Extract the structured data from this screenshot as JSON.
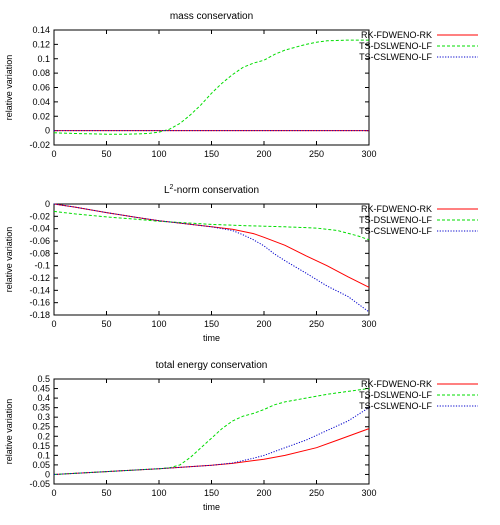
{
  "chart_data": [
    {
      "type": "line",
      "title": "mass conservation",
      "xlabel": "",
      "ylabel": "relative variation",
      "xlim": [
        0,
        300
      ],
      "ylim": [
        -0.02,
        0.14
      ],
      "xticks": [
        0,
        50,
        100,
        150,
        200,
        250,
        300
      ],
      "yticks": [
        -0.02,
        0,
        0.02,
        0.04,
        0.06,
        0.08,
        0.1,
        0.12,
        0.14
      ],
      "xtick_labels": [
        "0",
        "50",
        "100",
        "150",
        "200",
        "250",
        "300"
      ],
      "ytick_labels": [
        "-0.02",
        "0",
        "0.02",
        "0.04",
        "0.06",
        "0.08",
        "0.1",
        "0.12",
        "0.14"
      ],
      "legend_position": "outside-right",
      "grid": false,
      "series": [
        {
          "name": "RK-FDWENO-RK",
          "color": "#ff0000",
          "dash": "solid",
          "x": [
            0,
            300
          ],
          "y": [
            0,
            0
          ]
        },
        {
          "name": "TS-DSLWENO-LF",
          "color": "#00dd00",
          "dash": "dashed",
          "x": [
            0,
            20,
            50,
            70,
            90,
            100,
            110,
            120,
            130,
            140,
            150,
            160,
            170,
            180,
            190,
            200,
            210,
            220,
            230,
            240,
            250,
            260,
            280,
            300
          ],
          "y": [
            -0.003,
            -0.004,
            -0.005,
            -0.005,
            -0.004,
            -0.002,
            0.002,
            0.01,
            0.022,
            0.036,
            0.052,
            0.066,
            0.078,
            0.088,
            0.094,
            0.098,
            0.106,
            0.112,
            0.116,
            0.12,
            0.123,
            0.125,
            0.126,
            0.126
          ]
        },
        {
          "name": "TS-CSLWENO-LF",
          "color": "#0000cc",
          "dash": "dotted",
          "x": [
            0,
            300
          ],
          "y": [
            0,
            0
          ]
        }
      ]
    },
    {
      "type": "line",
      "title": "L2-norm conservation",
      "title_main": "L",
      "title_sup": "2",
      "title_rest": "-norm conservation",
      "xlabel": "time",
      "ylabel": "relative variation",
      "xlim": [
        0,
        300
      ],
      "ylim": [
        -0.18,
        0
      ],
      "xticks": [
        0,
        50,
        100,
        150,
        200,
        250,
        300
      ],
      "yticks": [
        -0.18,
        -0.16,
        -0.14,
        -0.12,
        -0.1,
        -0.08,
        -0.06,
        -0.04,
        -0.02,
        0
      ],
      "xtick_labels": [
        "0",
        "50",
        "100",
        "150",
        "200",
        "250",
        "300"
      ],
      "ytick_labels": [
        "-0.18",
        "-0.16",
        "-0.14",
        "-0.12",
        "-0.1",
        "-0.08",
        "-0.06",
        "-0.04",
        "-0.02",
        "0"
      ],
      "legend_position": "outside-right",
      "grid": false,
      "series": [
        {
          "name": "RK-FDWENO-RK",
          "color": "#ff0000",
          "dash": "solid",
          "x": [
            0,
            20,
            50,
            80,
            100,
            120,
            150,
            170,
            190,
            200,
            220,
            240,
            260,
            280,
            300
          ],
          "y": [
            0,
            -0.005,
            -0.014,
            -0.022,
            -0.027,
            -0.031,
            -0.037,
            -0.041,
            -0.048,
            -0.054,
            -0.067,
            -0.084,
            -0.1,
            -0.118,
            -0.135
          ]
        },
        {
          "name": "TS-DSLWENO-LF",
          "color": "#00dd00",
          "dash": "dashed",
          "x": [
            0,
            20,
            50,
            80,
            100,
            130,
            150,
            180,
            200,
            220,
            250,
            270,
            290,
            300
          ],
          "y": [
            -0.012,
            -0.016,
            -0.021,
            -0.025,
            -0.028,
            -0.031,
            -0.033,
            -0.035,
            -0.036,
            -0.037,
            -0.039,
            -0.043,
            -0.052,
            -0.058
          ]
        },
        {
          "name": "TS-CSLWENO-LF",
          "color": "#0000cc",
          "dash": "dotted",
          "x": [
            0,
            20,
            50,
            80,
            100,
            120,
            150,
            170,
            180,
            190,
            200,
            210,
            220,
            240,
            260,
            280,
            300
          ],
          "y": [
            0,
            -0.005,
            -0.014,
            -0.022,
            -0.027,
            -0.031,
            -0.037,
            -0.043,
            -0.05,
            -0.058,
            -0.068,
            -0.081,
            -0.092,
            -0.112,
            -0.133,
            -0.15,
            -0.175
          ]
        }
      ]
    },
    {
      "type": "line",
      "title": "total energy conservation",
      "xlabel": "time",
      "ylabel": "relative variation",
      "xlim": [
        0,
        300
      ],
      "ylim": [
        -0.05,
        0.5
      ],
      "xticks": [
        0,
        50,
        100,
        150,
        200,
        250,
        300
      ],
      "yticks": [
        -0.05,
        0,
        0.05,
        0.1,
        0.15,
        0.2,
        0.25,
        0.3,
        0.35,
        0.4,
        0.45,
        0.5
      ],
      "xtick_labels": [
        "0",
        "50",
        "100",
        "150",
        "200",
        "250",
        "300"
      ],
      "ytick_labels": [
        "-0.05",
        "0",
        "0.05",
        "0.1",
        "0.15",
        "0.2",
        "0.25",
        "0.3",
        "0.35",
        "0.4",
        "0.45",
        "0.5"
      ],
      "legend_position": "outside-right",
      "grid": false,
      "series": [
        {
          "name": "RK-FDWENO-RK",
          "color": "#ff0000",
          "dash": "solid",
          "x": [
            0,
            50,
            100,
            150,
            170,
            200,
            220,
            250,
            270,
            300
          ],
          "y": [
            0,
            0.015,
            0.03,
            0.048,
            0.058,
            0.08,
            0.1,
            0.14,
            0.18,
            0.24
          ]
        },
        {
          "name": "TS-DSLWENO-LF",
          "color": "#00dd00",
          "dash": "dashed",
          "x": [
            0,
            50,
            100,
            110,
            120,
            130,
            140,
            150,
            160,
            170,
            180,
            190,
            200,
            210,
            220,
            240,
            260,
            280,
            300
          ],
          "y": [
            0,
            0.015,
            0.03,
            0.035,
            0.05,
            0.09,
            0.14,
            0.19,
            0.24,
            0.28,
            0.305,
            0.32,
            0.34,
            0.365,
            0.38,
            0.4,
            0.42,
            0.435,
            0.45
          ]
        },
        {
          "name": "TS-CSLWENO-LF",
          "color": "#0000cc",
          "dash": "dotted",
          "x": [
            0,
            50,
            100,
            150,
            170,
            190,
            200,
            220,
            240,
            260,
            280,
            300
          ],
          "y": [
            0,
            0.015,
            0.03,
            0.048,
            0.06,
            0.085,
            0.1,
            0.14,
            0.18,
            0.23,
            0.28,
            0.35
          ]
        }
      ]
    }
  ]
}
